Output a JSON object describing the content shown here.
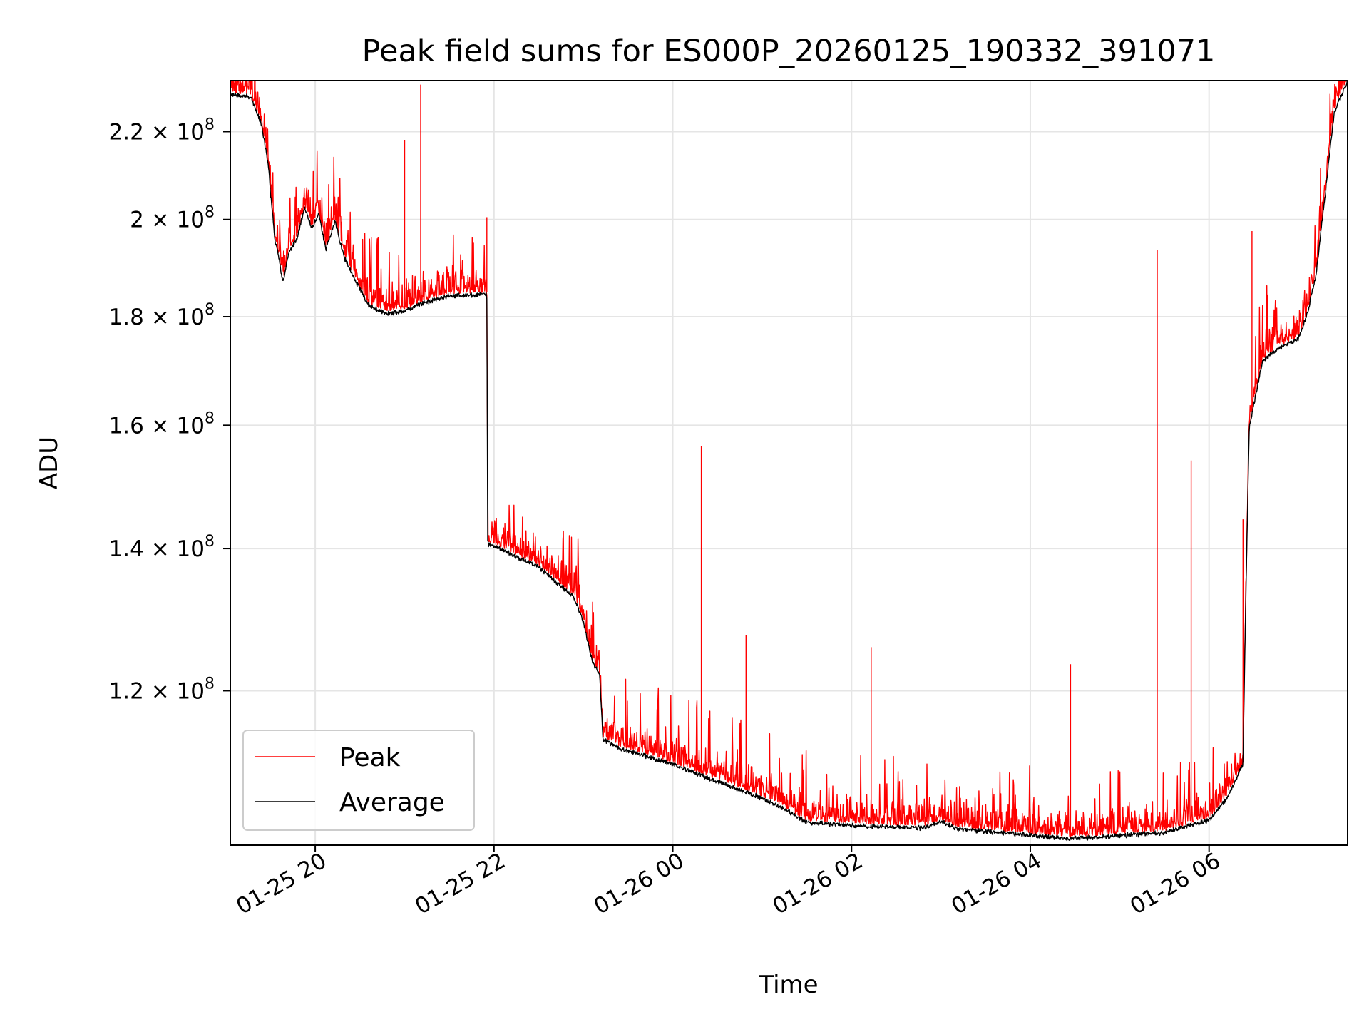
{
  "chart_data": {
    "type": "line",
    "title": "Peak field sums for ES000P_20260125_190332_391071",
    "xlabel": "Time",
    "ylabel": "ADU",
    "yscale": "log",
    "xlim_hours": [
      -0.95,
      11.55
    ],
    "ylim": [
      101500000,
      232500000
    ],
    "grid": true,
    "legend_position": "lower-left",
    "x_ticks": [
      {
        "hours": 0,
        "label": "01-25 20"
      },
      {
        "hours": 2,
        "label": "01-25 22"
      },
      {
        "hours": 4,
        "label": "01-26 00"
      },
      {
        "hours": 6,
        "label": "01-26 02"
      },
      {
        "hours": 8,
        "label": "01-26 04"
      },
      {
        "hours": 10,
        "label": "01-26 06"
      }
    ],
    "y_ticks": [
      {
        "value": 120000000,
        "mantissa": "1.2",
        "base": "10",
        "exp": "8"
      },
      {
        "value": 140000000,
        "mantissa": "1.4",
        "base": "10",
        "exp": "8"
      },
      {
        "value": 160000000,
        "mantissa": "1.6",
        "base": "10",
        "exp": "8"
      },
      {
        "value": 180000000,
        "mantissa": "1.8",
        "base": "10",
        "exp": "8"
      },
      {
        "value": 200000000,
        "mantissa": "2",
        "base": "10",
        "exp": "8"
      },
      {
        "value": 220000000,
        "mantissa": "2.2",
        "base": "10",
        "exp": "8"
      }
    ],
    "series": [
      {
        "name": "Peak",
        "color": "#ff0000",
        "noise_up_fraction": 0.012,
        "spikes": [
          {
            "hours": 1.0,
            "value": 218000000
          },
          {
            "hours": 1.18,
            "value": 231500000
          },
          {
            "hours": 1.92,
            "value": 200500000
          },
          {
            "hours": 4.32,
            "value": 156500000
          },
          {
            "hours": 4.82,
            "value": 127500000
          },
          {
            "hours": 6.22,
            "value": 125800000
          },
          {
            "hours": 8.45,
            "value": 123500000
          },
          {
            "hours": 9.42,
            "value": 193500000
          },
          {
            "hours": 9.8,
            "value": 154000000
          },
          {
            "hours": 10.38,
            "value": 144500000
          },
          {
            "hours": 10.48,
            "value": 197500000
          }
        ]
      },
      {
        "name": "Average",
        "color": "#000000",
        "noise_down_fraction": 0.004,
        "points": [
          [
            -0.95,
            229500000
          ],
          [
            -0.72,
            229000000
          ],
          [
            -0.6,
            222000000
          ],
          [
            -0.52,
            212000000
          ],
          [
            -0.5,
            206000000
          ],
          [
            -0.45,
            196000000
          ],
          [
            -0.4,
            191500000
          ],
          [
            -0.36,
            187000000
          ],
          [
            -0.3,
            193000000
          ],
          [
            -0.2,
            196500000
          ],
          [
            -0.12,
            203000000
          ],
          [
            -0.04,
            198500000
          ],
          [
            0.04,
            201500000
          ],
          [
            0.12,
            194000000
          ],
          [
            0.22,
            200000000
          ],
          [
            0.32,
            192500000
          ],
          [
            0.45,
            187500000
          ],
          [
            0.6,
            182500000
          ],
          [
            0.8,
            181000000
          ],
          [
            1.0,
            181500000
          ],
          [
            1.2,
            183000000
          ],
          [
            1.5,
            184500000
          ],
          [
            1.92,
            184800000
          ],
          [
            1.93,
            141000000
          ],
          [
            2.1,
            140000000
          ],
          [
            2.5,
            137500000
          ],
          [
            2.9,
            133000000
          ],
          [
            3.0,
            129500000
          ],
          [
            3.1,
            124000000
          ],
          [
            3.18,
            122500000
          ],
          [
            3.22,
            114000000
          ],
          [
            3.4,
            113000000
          ],
          [
            3.7,
            112000000
          ],
          [
            4.0,
            111000000
          ],
          [
            4.5,
            109000000
          ],
          [
            5.0,
            107000000
          ],
          [
            5.3,
            105500000
          ],
          [
            5.5,
            104200000
          ],
          [
            6.0,
            103900000
          ],
          [
            6.8,
            103600000
          ],
          [
            7.0,
            104300000
          ],
          [
            7.2,
            103500000
          ],
          [
            8.0,
            102800000
          ],
          [
            8.4,
            102400000
          ],
          [
            8.8,
            102600000
          ],
          [
            9.5,
            103100000
          ],
          [
            10.0,
            104500000
          ],
          [
            10.2,
            107000000
          ],
          [
            10.38,
            111000000
          ],
          [
            10.45,
            160000000
          ],
          [
            10.6,
            172000000
          ],
          [
            10.8,
            174500000
          ],
          [
            11.0,
            176000000
          ],
          [
            11.1,
            181000000
          ],
          [
            11.2,
            189000000
          ],
          [
            11.3,
            206000000
          ],
          [
            11.4,
            225000000
          ],
          [
            11.55,
            233000000
          ]
        ]
      }
    ]
  }
}
